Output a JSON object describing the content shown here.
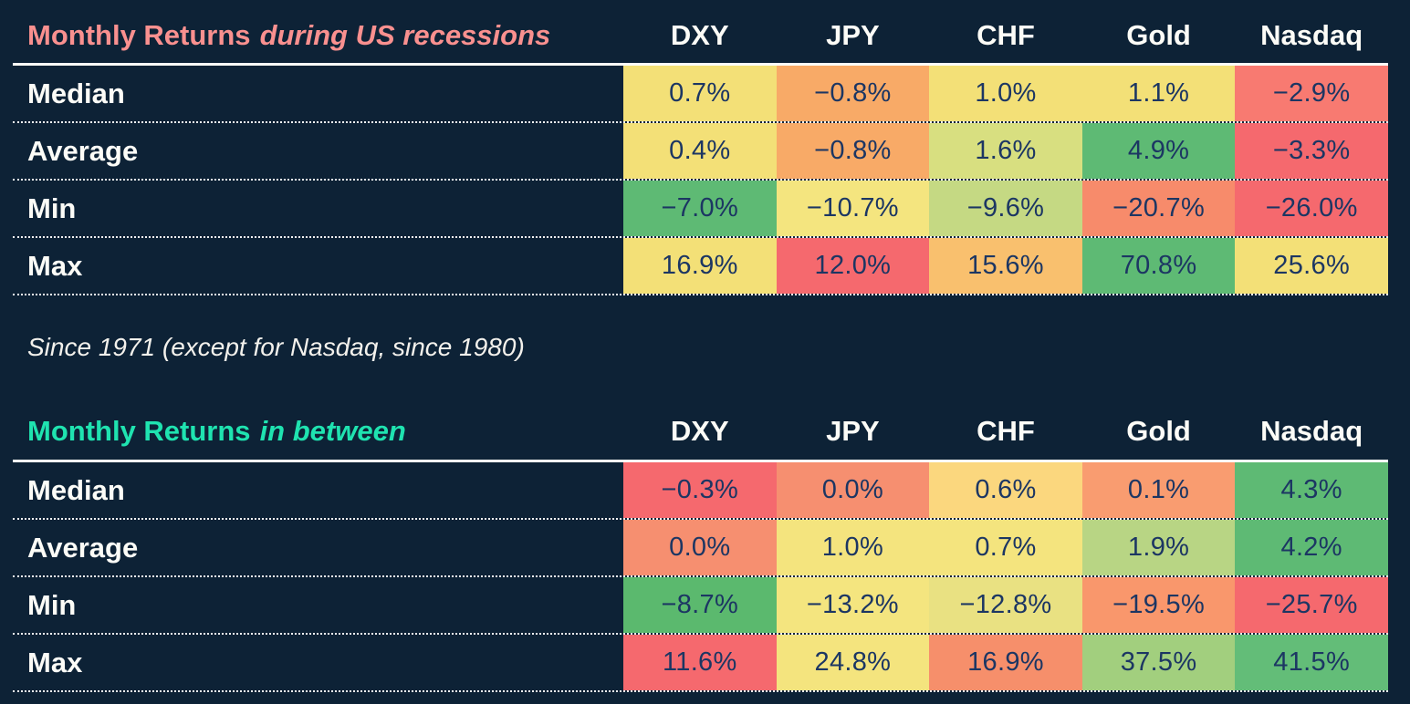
{
  "background_color": "#0d2236",
  "subtitle": "Since 1971 (except for Nasdaq, since 1980)",
  "tables": [
    {
      "title_main": "Monthly Returns",
      "title_italic": "during US recessions",
      "title_color": "#f9908f",
      "columns": [
        "DXY",
        "JPY",
        "CHF",
        "Gold",
        "Nasdaq"
      ],
      "rows": [
        {
          "label": "Median",
          "cells": [
            {
              "value": "0.7%",
              "color": "#f3e077"
            },
            {
              "value": "−0.8%",
              "color": "#f8aa67"
            },
            {
              "value": "1.0%",
              "color": "#f3e077"
            },
            {
              "value": "1.1%",
              "color": "#f3e077"
            },
            {
              "value": "−2.9%",
              "color": "#f87a71"
            }
          ]
        },
        {
          "label": "Average",
          "cells": [
            {
              "value": "0.4%",
              "color": "#f3e077"
            },
            {
              "value": "−0.8%",
              "color": "#f8aa67"
            },
            {
              "value": "1.6%",
              "color": "#d8df80"
            },
            {
              "value": "4.9%",
              "color": "#5eba74"
            },
            {
              "value": "−3.3%",
              "color": "#f5696e"
            }
          ]
        },
        {
          "label": "Min",
          "cells": [
            {
              "value": "−7.0%",
              "color": "#5eba74"
            },
            {
              "value": "−10.7%",
              "color": "#f4e57f"
            },
            {
              "value": "−9.6%",
              "color": "#c5d983"
            },
            {
              "value": "−20.7%",
              "color": "#f78b6b"
            },
            {
              "value": "−26.0%",
              "color": "#f5696e"
            }
          ]
        },
        {
          "label": "Max",
          "cells": [
            {
              "value": "16.9%",
              "color": "#f3e077"
            },
            {
              "value": "12.0%",
              "color": "#f5696e"
            },
            {
              "value": "15.6%",
              "color": "#f9c06e"
            },
            {
              "value": "70.8%",
              "color": "#5eba74"
            },
            {
              "value": "25.6%",
              "color": "#f3e077"
            }
          ]
        }
      ]
    },
    {
      "title_main": "Monthly Returns",
      "title_italic": "in between",
      "title_color": "#1fe3b0",
      "columns": [
        "DXY",
        "JPY",
        "CHF",
        "Gold",
        "Nasdaq"
      ],
      "rows": [
        {
          "label": "Median",
          "cells": [
            {
              "value": "−0.3%",
              "color": "#f5696e"
            },
            {
              "value": "0.0%",
              "color": "#f68f70"
            },
            {
              "value": "0.6%",
              "color": "#fbd77e"
            },
            {
              "value": "0.1%",
              "color": "#f99c70"
            },
            {
              "value": "4.3%",
              "color": "#5eba74"
            }
          ]
        },
        {
          "label": "Average",
          "cells": [
            {
              "value": "0.0%",
              "color": "#f68f70"
            },
            {
              "value": "1.0%",
              "color": "#f4e47e"
            },
            {
              "value": "0.7%",
              "color": "#f4e47e"
            },
            {
              "value": "1.9%",
              "color": "#b8d584"
            },
            {
              "value": "4.2%",
              "color": "#5eba74"
            }
          ]
        },
        {
          "label": "Min",
          "cells": [
            {
              "value": "−8.7%",
              "color": "#5bb96e"
            },
            {
              "value": "−13.2%",
              "color": "#f4e57f"
            },
            {
              "value": "−12.8%",
              "color": "#e9e182"
            },
            {
              "value": "−19.5%",
              "color": "#f9976c"
            },
            {
              "value": "−25.7%",
              "color": "#f5696e"
            }
          ]
        },
        {
          "label": "Max",
          "cells": [
            {
              "value": "11.6%",
              "color": "#f5696e"
            },
            {
              "value": "24.8%",
              "color": "#f4e47e"
            },
            {
              "value": "16.9%",
              "color": "#f68f6b"
            },
            {
              "value": "37.5%",
              "color": "#a2cf7e"
            },
            {
              "value": "41.5%",
              "color": "#63bd78"
            }
          ]
        }
      ]
    }
  ],
  "chart_data": [
    {
      "type": "heatmap",
      "title": "Monthly Returns during US recessions",
      "columns": [
        "DXY",
        "JPY",
        "CHF",
        "Gold",
        "Nasdaq"
      ],
      "rows": [
        "Median",
        "Average",
        "Min",
        "Max"
      ],
      "values_pct": [
        [
          0.7,
          -0.8,
          1.0,
          1.1,
          -2.9
        ],
        [
          0.4,
          -0.8,
          1.6,
          4.9,
          -3.3
        ],
        [
          -7.0,
          -10.7,
          -9.6,
          -20.7,
          -26.0
        ],
        [
          16.9,
          12.0,
          15.6,
          70.8,
          25.6
        ]
      ],
      "note": "Since 1971 (except for Nasdaq, since 1980)",
      "color_scale": "red (low/negative) to yellow to green (high/positive)"
    },
    {
      "type": "heatmap",
      "title": "Monthly Returns in between",
      "columns": [
        "DXY",
        "JPY",
        "CHF",
        "Gold",
        "Nasdaq"
      ],
      "rows": [
        "Median",
        "Average",
        "Min",
        "Max"
      ],
      "values_pct": [
        [
          -0.3,
          0.0,
          0.6,
          0.1,
          4.3
        ],
        [
          0.0,
          1.0,
          0.7,
          1.9,
          4.2
        ],
        [
          -8.7,
          -13.2,
          -12.8,
          -19.5,
          -25.7
        ],
        [
          11.6,
          24.8,
          16.9,
          37.5,
          41.5
        ]
      ],
      "color_scale": "red (low/negative) to yellow to green (high/positive)"
    }
  ]
}
